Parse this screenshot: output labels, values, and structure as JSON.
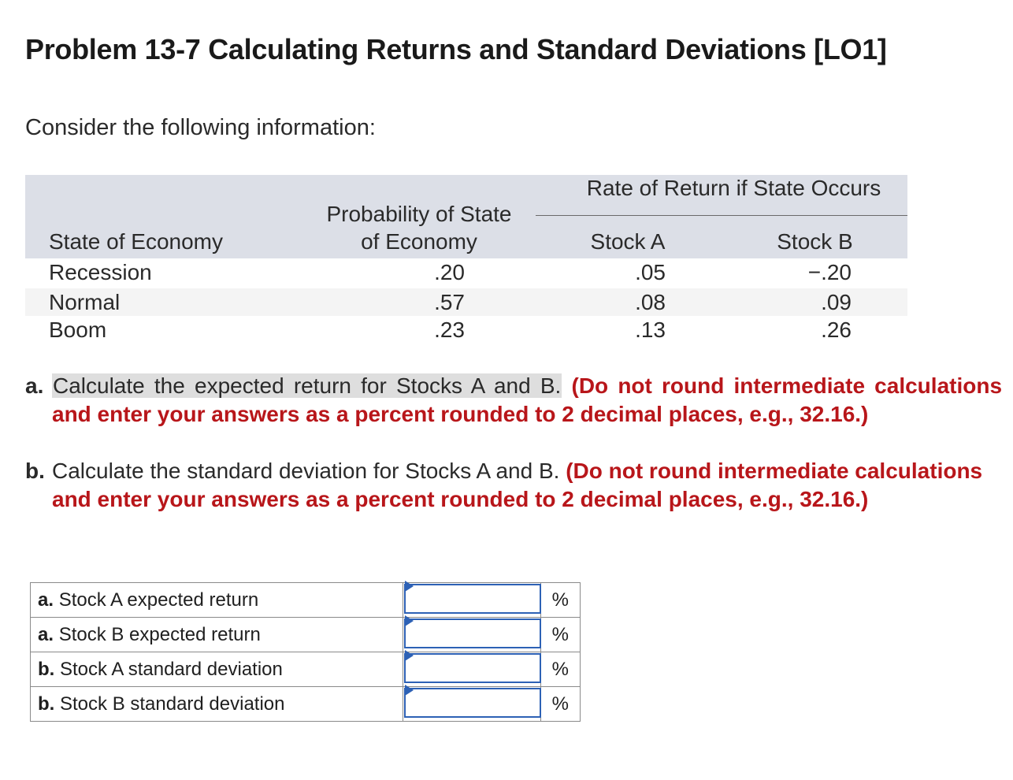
{
  "title": "Problem 13-7 Calculating Returns and Standard Deviations [LO1]",
  "intro": "Consider the following information:",
  "info_table": {
    "span_header": "Rate of Return if State Occurs",
    "col_state": "State of Economy",
    "col_prob_line1": "Probability of State",
    "col_prob_line2": "of Economy",
    "col_a": "Stock A",
    "col_b": "Stock B",
    "rows": [
      {
        "state": "Recession",
        "prob": ".20",
        "a": ".05",
        "b": "−.20"
      },
      {
        "state": "Normal",
        "prob": ".57",
        "a": ".08",
        "b": ".09"
      },
      {
        "state": "Boom",
        "prob": ".23",
        "a": ".13",
        "b": ".26"
      }
    ]
  },
  "question_a": {
    "label": "a.",
    "text": "Calculate the expected return for Stocks A and B.",
    "instruction": "(Do not round intermediate calculations and enter your answers as a percent rounded to 2 decimal places, e.g., 32.16.)"
  },
  "question_b": {
    "label": "b.",
    "text": "Calculate the standard deviation for Stocks A and B.",
    "instruction": "(Do not round intermediate calculations and enter your answers as a percent rounded to 2 decimal places, e.g., 32.16.)"
  },
  "answer_table": {
    "rows": [
      {
        "prefix": "a.",
        "label": "Stock A expected return",
        "value": "",
        "unit": "%"
      },
      {
        "prefix": "a.",
        "label": "Stock B expected return",
        "value": "",
        "unit": "%"
      },
      {
        "prefix": "b.",
        "label": "Stock A standard deviation",
        "value": "",
        "unit": "%"
      },
      {
        "prefix": "b.",
        "label": "Stock B standard deviation",
        "value": "",
        "unit": "%"
      }
    ]
  },
  "colors": {
    "header_bg": "#dcdfe7",
    "instruction_red": "#b8161a",
    "input_border": "#2d61b5"
  }
}
